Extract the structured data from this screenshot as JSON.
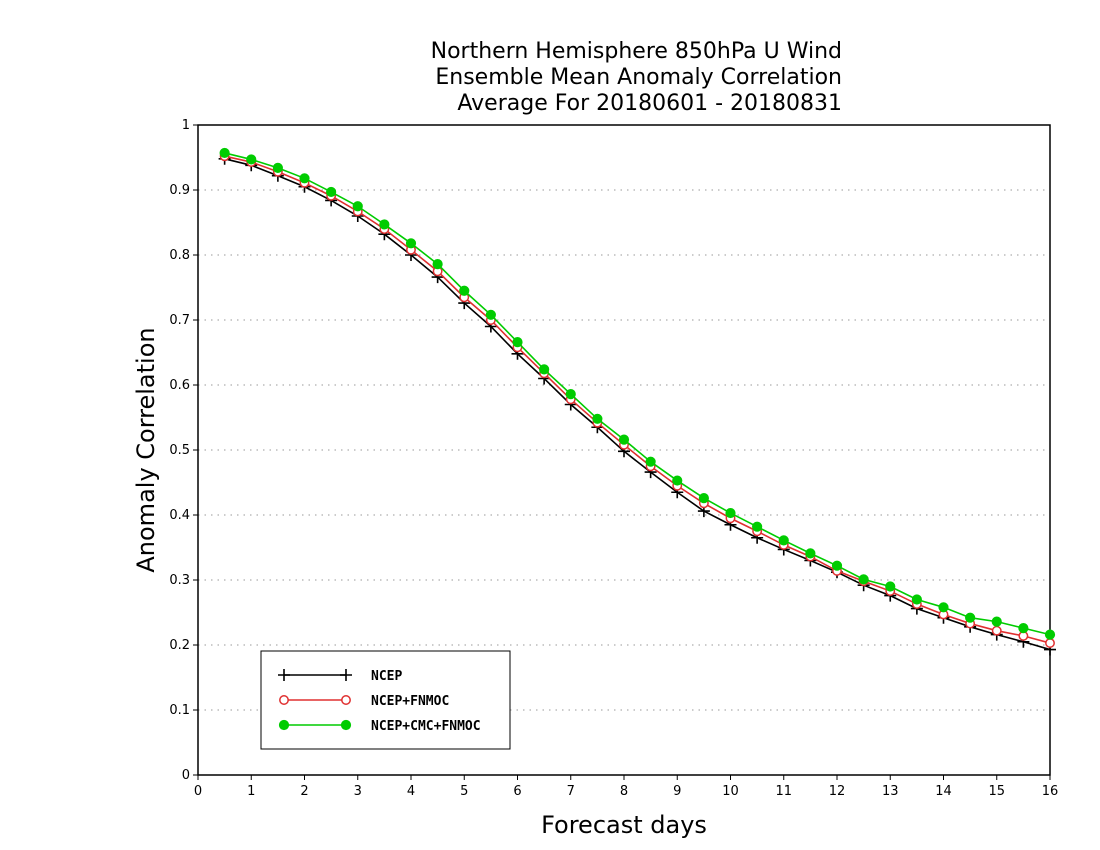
{
  "chart_data": {
    "type": "line",
    "title_lines": [
      "Northern Hemisphere 850hPa U Wind",
      "Ensemble Mean Anomaly Correlation",
      "Average For 20180601 - 20180831"
    ],
    "xlabel": "Forecast days",
    "ylabel": "Anomaly Correlation",
    "xlim": [
      0,
      16
    ],
    "ylim": [
      0,
      1
    ],
    "x_ticks": [
      "0",
      "1",
      "2",
      "3",
      "4",
      "5",
      "6",
      "7",
      "8",
      "9",
      "10",
      "11",
      "12",
      "13",
      "14",
      "15",
      "16"
    ],
    "y_ticks": [
      "0",
      "0.1",
      "0.2",
      "0.3",
      "0.4",
      "0.5",
      "0.6",
      "0.7",
      "0.8",
      "0.9",
      "1"
    ],
    "grid": "horizontal dotted",
    "legend_position": "bottom-left",
    "x": [
      0.5,
      1,
      1.5,
      2,
      2.5,
      3,
      3.5,
      4,
      4.5,
      5,
      5.5,
      6,
      6.5,
      7,
      7.5,
      8,
      8.5,
      9,
      9.5,
      10,
      10.5,
      11,
      11.5,
      12,
      12.5,
      13,
      13.5,
      14,
      14.5,
      15,
      15.5,
      16
    ],
    "series": [
      {
        "name": "NCEP",
        "color": "#000000",
        "marker": "plus",
        "values": [
          0.948,
          0.938,
          0.922,
          0.905,
          0.884,
          0.86,
          0.832,
          0.8,
          0.766,
          0.726,
          0.69,
          0.648,
          0.61,
          0.57,
          0.535,
          0.498,
          0.466,
          0.435,
          0.406,
          0.385,
          0.365,
          0.347,
          0.33,
          0.312,
          0.292,
          0.276,
          0.256,
          0.242,
          0.228,
          0.216,
          0.205,
          0.193
        ]
      },
      {
        "name": "NCEP+FNMOC",
        "color": "#e03030",
        "marker": "open-circle",
        "values": [
          0.952,
          0.943,
          0.928,
          0.911,
          0.891,
          0.867,
          0.84,
          0.808,
          0.775,
          0.735,
          0.7,
          0.658,
          0.618,
          0.578,
          0.542,
          0.508,
          0.475,
          0.445,
          0.418,
          0.395,
          0.375,
          0.354,
          0.336,
          0.314,
          0.298,
          0.283,
          0.263,
          0.247,
          0.233,
          0.222,
          0.214,
          0.203
        ]
      },
      {
        "name": "NCEP+CMC+FNMOC",
        "color": "#00cc00",
        "marker": "filled-circle",
        "values": [
          0.957,
          0.947,
          0.934,
          0.918,
          0.897,
          0.875,
          0.847,
          0.818,
          0.786,
          0.745,
          0.708,
          0.666,
          0.624,
          0.586,
          0.548,
          0.516,
          0.482,
          0.453,
          0.426,
          0.403,
          0.382,
          0.361,
          0.341,
          0.322,
          0.301,
          0.29,
          0.27,
          0.258,
          0.242,
          0.236,
          0.226,
          0.216
        ]
      }
    ]
  }
}
